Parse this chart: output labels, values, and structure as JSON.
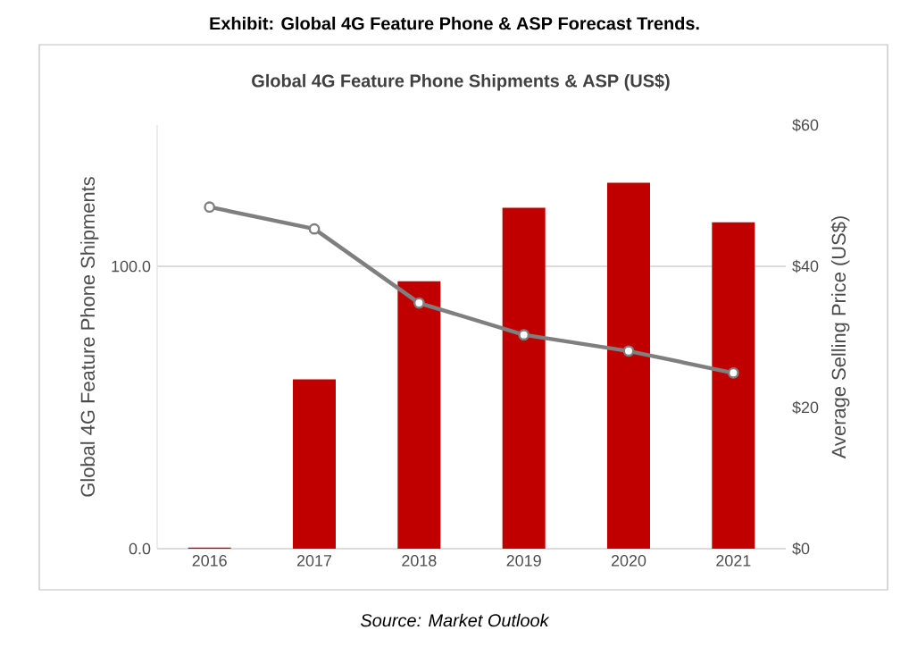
{
  "chart_data": {
    "type": "bar",
    "title": "Exhibit: Global 4G Feature Phone & ASP Forecast Trends.",
    "subtitle": "Global 4G Feature Phone Shipments & ASP (US$)",
    "categories": [
      "2016",
      "2017",
      "2018",
      "2019",
      "2020",
      "2021"
    ],
    "series": [
      {
        "color": "#c00000",
        "values": [
          0.4,
          60,
          94.7,
          120.7,
          129.6,
          115.6
        ]
      },
      {
        "type": "line",
        "axis": "y2",
        "color": "#7f7f7f",
        "marker": "circle",
        "line_style": "solid",
        "values": [
          48.4,
          45.3,
          34.8,
          30.3,
          28.0,
          24.9
        ]
      }
    ],
    "ylabel": "Global 4G Feature Phone Shipments",
    "y2label": "Average Selling Price (US$)",
    "ylim": [
      0,
      150
    ],
    "yticks": [
      {
        "value": 0,
        "label": "0.0"
      },
      {
        "value": 100,
        "label": "100.0"
      }
    ],
    "y2lim": [
      0,
      60
    ],
    "y2ticks": [
      {
        "value": 0,
        "label": "$0"
      },
      {
        "value": 20,
        "label": "$20"
      },
      {
        "value": 40,
        "label": "$40"
      },
      {
        "value": 60,
        "label": "$60"
      }
    ],
    "grid": "y",
    "annotations": [
      "Source: Market Outlook"
    ]
  }
}
